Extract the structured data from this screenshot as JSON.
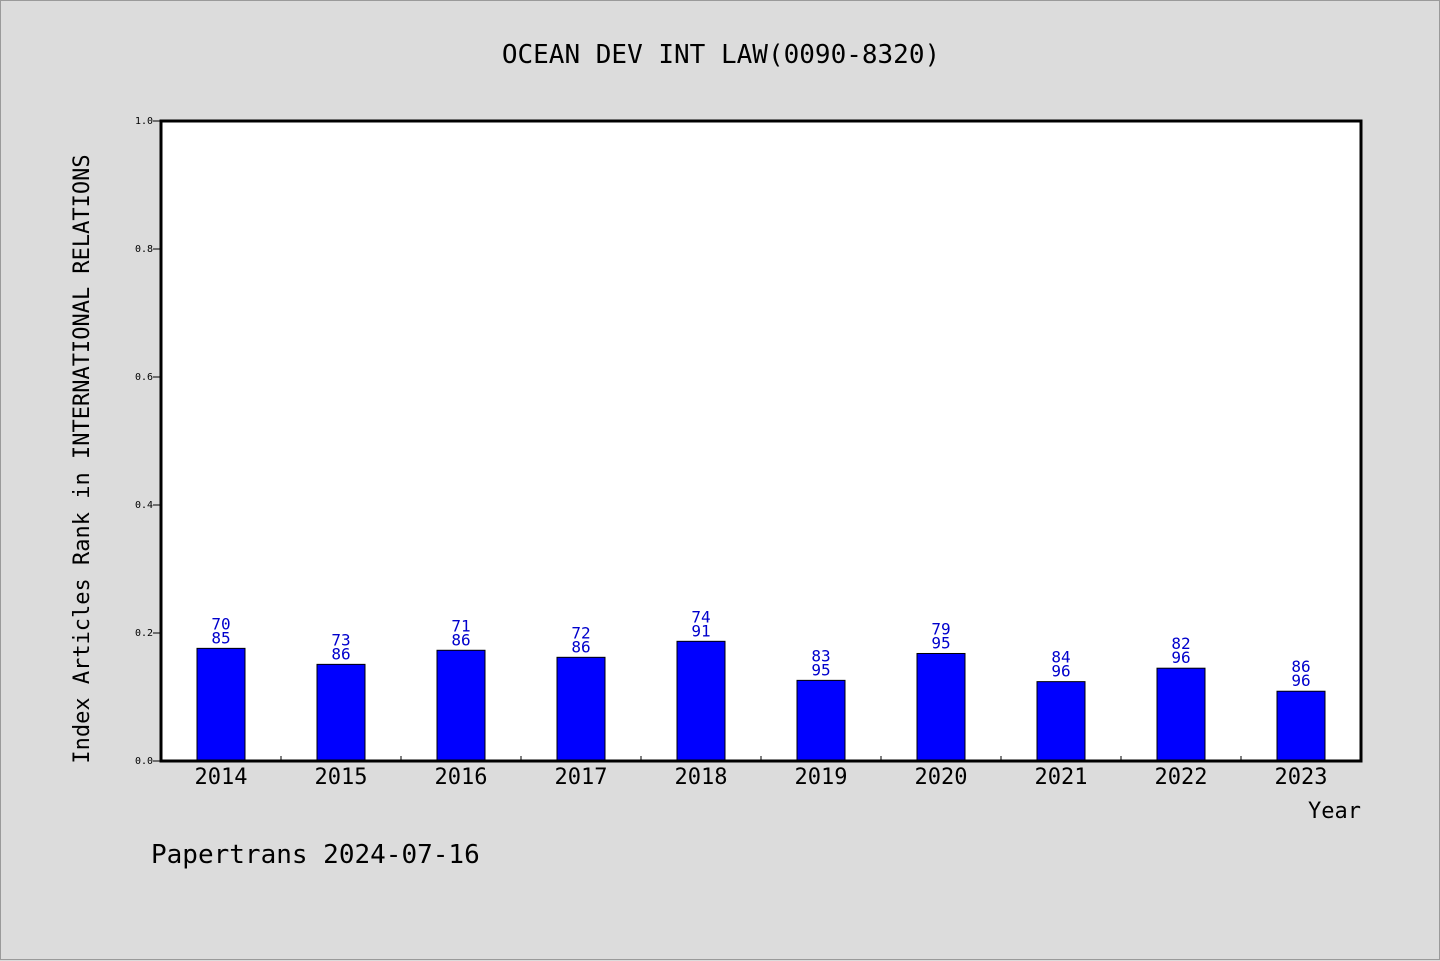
{
  "chart_data": {
    "type": "bar",
    "title": "OCEAN DEV INT LAW(0090-8320)",
    "xlabel": "Year",
    "ylabel": "Index Articles Rank in INTERNATIONAL RELATIONS",
    "ylim": [
      0,
      1.0
    ],
    "yticks": [
      "0.0",
      "0.2",
      "0.4",
      "0.6",
      "0.8",
      "1.0"
    ],
    "categories": [
      "2014",
      "2015",
      "2016",
      "2017",
      "2018",
      "2019",
      "2020",
      "2021",
      "2022",
      "2023"
    ],
    "values": [
      0.176,
      0.151,
      0.173,
      0.162,
      0.187,
      0.126,
      0.168,
      0.124,
      0.145,
      0.109
    ],
    "labels_top": [
      "70",
      "73",
      "71",
      "72",
      "74",
      "83",
      "79",
      "84",
      "82",
      "86"
    ],
    "labels_bottom": [
      "85",
      "86",
      "86",
      "86",
      "91",
      "95",
      "95",
      "96",
      "96",
      "96"
    ],
    "bar_color": "#0000ff",
    "label_color": "#0000cc",
    "grid": false,
    "legend": "none"
  },
  "footer": "Papertrans 2024-07-16"
}
